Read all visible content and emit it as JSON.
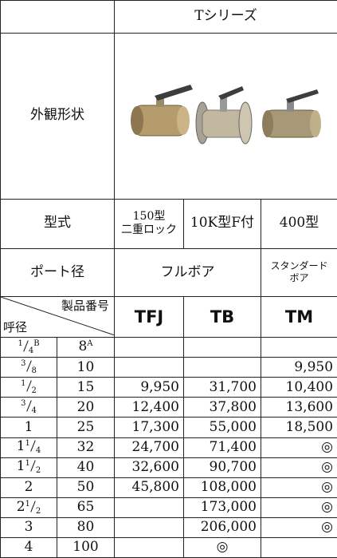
{
  "header": {
    "series": "Tシリーズ"
  },
  "labels": {
    "appearance": "外観形状",
    "model": "型式",
    "port": "ポート径",
    "product_no": "製品番号",
    "nominal": "呼径"
  },
  "columns": [
    {
      "code": "TFJ",
      "model": [
        "150型",
        "二重ロック"
      ]
    },
    {
      "code": "TB",
      "model": [
        "10K型F付"
      ]
    },
    {
      "code": "TM",
      "model": [
        "400型"
      ]
    }
  ],
  "ports": {
    "full": "フルボア",
    "standard": [
      "スタンダード",
      "ボア"
    ]
  },
  "rows": [
    {
      "inch": {
        "num": "1",
        "den": "4",
        "unit": "B"
      },
      "a": "8",
      "a_unit": "A",
      "prices": [
        null,
        null,
        null
      ]
    },
    {
      "inch": {
        "num": "3",
        "den": "8"
      },
      "a": "10",
      "prices": [
        null,
        null,
        "9,950"
      ]
    },
    {
      "inch": {
        "num": "1",
        "den": "2"
      },
      "a": "15",
      "prices": [
        "9,950",
        "31,700",
        "10,400"
      ]
    },
    {
      "inch": {
        "num": "3",
        "den": "4"
      },
      "a": "20",
      "prices": [
        "12,400",
        "37,800",
        "13,600"
      ]
    },
    {
      "inch": {
        "whole": "1"
      },
      "a": "25",
      "prices": [
        "17,300",
        "55,000",
        "18,500"
      ]
    },
    {
      "inch": {
        "whole": "1",
        "num": "1",
        "den": "4"
      },
      "a": "32",
      "prices": [
        "24,700",
        "71,400",
        "◎"
      ]
    },
    {
      "inch": {
        "whole": "1",
        "num": "1",
        "den": "2"
      },
      "a": "40",
      "prices": [
        "32,600",
        "90,700",
        "◎"
      ]
    },
    {
      "inch": {
        "whole": "2"
      },
      "a": "50",
      "prices": [
        "45,800",
        "108,000",
        "◎"
      ]
    },
    {
      "inch": {
        "whole": "2",
        "num": "1",
        "den": "2"
      },
      "a": "65",
      "prices": [
        null,
        "173,000",
        "◎"
      ]
    },
    {
      "inch": {
        "whole": "3"
      },
      "a": "80",
      "prices": [
        null,
        "206,000",
        "◎"
      ]
    },
    {
      "inch": {
        "whole": "4"
      },
      "a": "100",
      "prices": [
        null,
        "◎",
        null
      ]
    }
  ]
}
